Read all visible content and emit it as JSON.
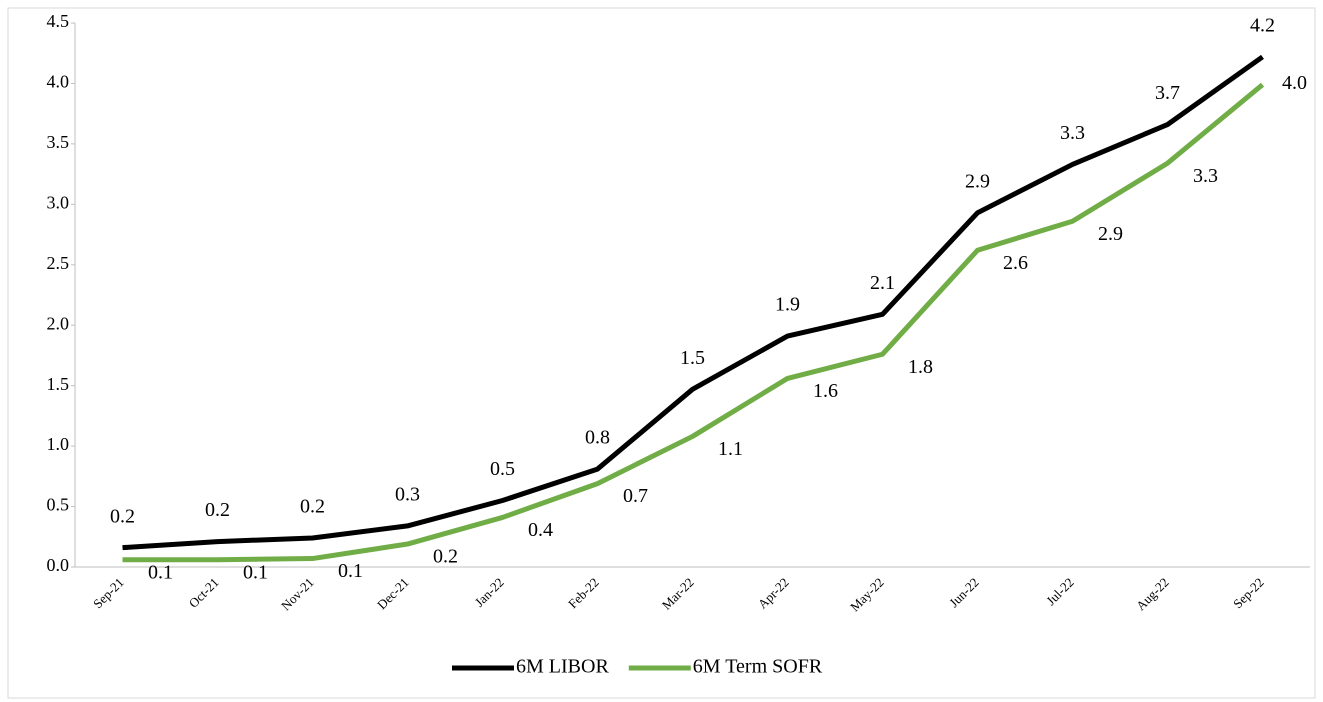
{
  "chart_data": {
    "type": "line",
    "categories": [
      "Sep-21",
      "Oct-21",
      "Nov-21",
      "Dec-21",
      "Jan-22",
      "Feb-22",
      "Mar-22",
      "Apr-22",
      "May-22",
      "Jun-22",
      "Jul-22",
      "Aug-22",
      "Sep-22"
    ],
    "series": [
      {
        "name": "6M LIBOR",
        "color": "#000000",
        "values": [
          0.16,
          0.21,
          0.24,
          0.34,
          0.55,
          0.81,
          1.47,
          1.91,
          2.09,
          2.93,
          3.33,
          3.66,
          4.22
        ],
        "value_labels": [
          "0.2",
          "0.2",
          "0.2",
          "0.3",
          "0.5",
          "0.8",
          "1.5",
          "1.9",
          "2.1",
          "2.9",
          "3.3",
          "3.7",
          "4.2"
        ]
      },
      {
        "name": "6M Term SOFR",
        "color": "#70ad47",
        "values": [
          0.06,
          0.06,
          0.07,
          0.19,
          0.41,
          0.69,
          1.08,
          1.56,
          1.76,
          2.62,
          2.86,
          3.34,
          3.99
        ],
        "value_labels": [
          "0.1",
          "0.1",
          "0.1",
          "0.2",
          "0.4",
          "0.7",
          "1.1",
          "1.6",
          "1.8",
          "2.6",
          "2.9",
          "3.3",
          "4.0"
        ]
      }
    ],
    "ylim": [
      0,
      4.5
    ],
    "yticks": [
      {
        "value": 0,
        "label": "0.0"
      },
      0.5,
      {
        "value": 1,
        "label": "1.0"
      },
      1.5,
      {
        "value": 2,
        "label": "2.0"
      },
      2.5,
      {
        "value": 3,
        "label": "3.0"
      },
      3.5,
      {
        "value": 4,
        "label": "4.0"
      },
      4.5
    ],
    "legend": "bottom"
  }
}
